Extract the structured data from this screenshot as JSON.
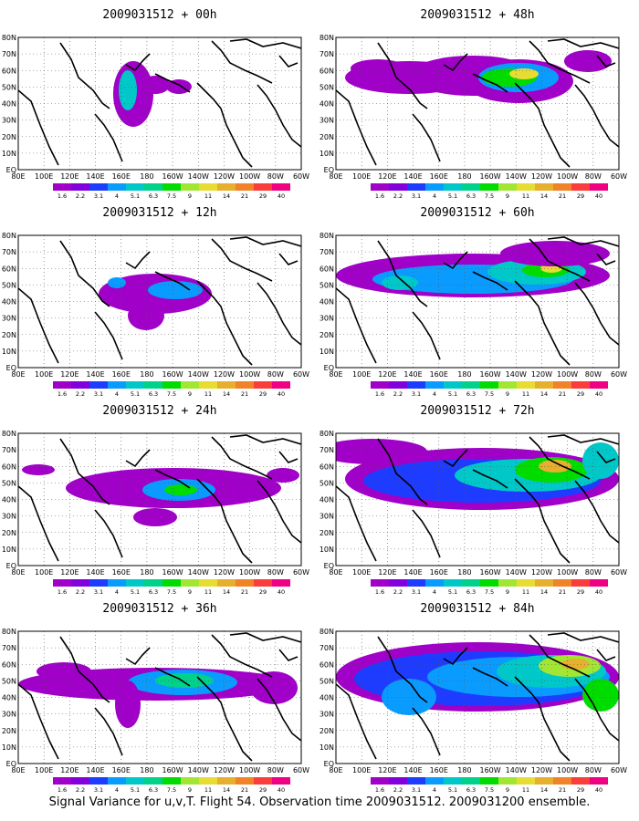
{
  "panels": [
    {
      "title": "2009031512 + 00h",
      "hour": 0
    },
    {
      "title": "2009031512 + 48h",
      "hour": 48
    },
    {
      "title": "2009031512 + 12h",
      "hour": 12
    },
    {
      "title": "2009031512 + 60h",
      "hour": 60
    },
    {
      "title": "2009031512 + 24h",
      "hour": 24
    },
    {
      "title": "2009031512 + 72h",
      "hour": 72
    },
    {
      "title": "2009031512 + 36h",
      "hour": 36
    },
    {
      "title": "2009031512 + 84h",
      "hour": 84
    }
  ],
  "lat_labels": [
    "80N",
    "70N",
    "60N",
    "50N",
    "40N",
    "30N",
    "20N",
    "10N",
    "EQ"
  ],
  "lon_labels": [
    "80E",
    "100E",
    "120E",
    "140E",
    "160E",
    "180",
    "160W",
    "140W",
    "120W",
    "100W",
    "80W",
    "60W"
  ],
  "colorbar": {
    "labels": [
      "1.6",
      "2.2",
      "3.1",
      "4",
      "5.1",
      "6.3",
      "7.5",
      "9",
      "11",
      "14",
      "21",
      "29",
      "40"
    ],
    "colors": [
      "#a000c8",
      "#8200dc",
      "#1e3cff",
      "#0a9bff",
      "#00c8c8",
      "#00d28c",
      "#00dc00",
      "#a0e632",
      "#e6dc32",
      "#e6af2d",
      "#f08228",
      "#fa3c3c",
      "#f00082"
    ]
  },
  "caption": "Signal Variance for u,v,T. Flight 54. Observation time 2009031512. 2009031200 ensemble."
}
